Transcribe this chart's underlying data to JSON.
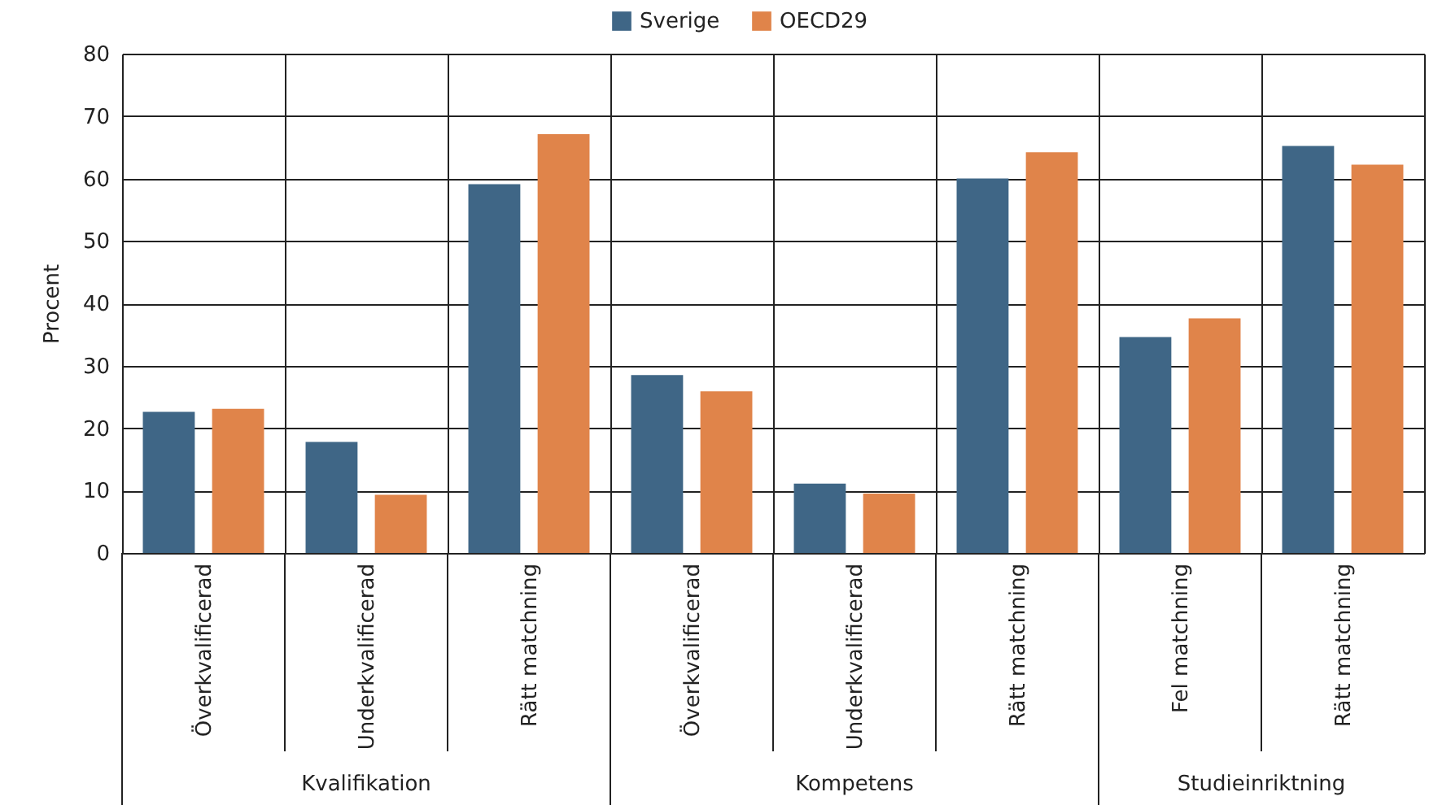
{
  "chart_data": {
    "type": "bar",
    "ylabel": "Procent",
    "categories": [
      "Överkvalificerad",
      "Underkvalificerad",
      "Rätt matchning",
      "Överkvalificerad",
      "Underkvalificerad",
      "Rätt matchning",
      "Fel matchning",
      "Rätt matchning"
    ],
    "series": [
      {
        "name": "Sverige",
        "color": "#3f6686",
        "values": [
          22.6,
          17.8,
          59.1,
          28.5,
          11.1,
          60.0,
          34.6,
          65.2
        ]
      },
      {
        "name": "OECD29",
        "color": "#e0844a",
        "values": [
          23.1,
          9.3,
          67.1,
          25.9,
          9.5,
          64.2,
          37.6,
          62.2
        ]
      }
    ],
    "annotations": [
      "Kvalifikation",
      "Kompetens",
      "Studieinriktning"
    ],
    "ylim": [
      0,
      80
    ],
    "yticks": [
      0,
      10,
      20,
      30,
      40,
      50,
      60,
      70,
      80
    ],
    "grid": true,
    "legend": "top"
  }
}
